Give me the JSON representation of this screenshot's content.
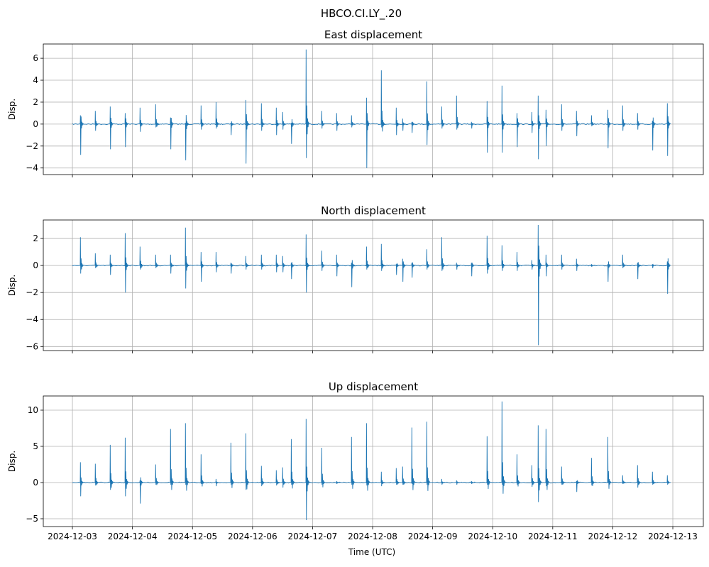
{
  "chart_data": {
    "type": "line",
    "suptitle": "HBCO.CI.LY_.20",
    "xlabel": "Time (UTC)",
    "x_unit": "days since 2024-12-03 00:00 UTC",
    "xlim": [
      -0.485,
      10.508
    ],
    "x_ticks": [
      0,
      1,
      2,
      3,
      4,
      5,
      6,
      7,
      8,
      9,
      10
    ],
    "x_tick_labels": [
      "2024-12-03",
      "2024-12-04",
      "2024-12-05",
      "2024-12-06",
      "2024-12-07",
      "2024-12-08",
      "2024-12-09",
      "2024-12-10",
      "2024-12-11",
      "2024-12-12",
      "2024-12-13"
    ],
    "grid": true,
    "line_color": "#1f77b4",
    "data_range": [
      0.0,
      9.95
    ],
    "spike_times": [
      0.13,
      0.378,
      0.626,
      0.875,
      1.123,
      1.383,
      1.631,
      1.879,
      2.139,
      2.388,
      2.636,
      2.884,
      3.144,
      3.392,
      3.499,
      3.641,
      3.889,
      4.149,
      4.397,
      4.645,
      4.894,
      5.142,
      5.39,
      5.496,
      5.65,
      5.898,
      6.147,
      6.395,
      6.643,
      6.903,
      7.151,
      7.4,
      7.648,
      7.754,
      7.884,
      8.144,
      8.392,
      8.641,
      8.913,
      9.161,
      9.409,
      9.657,
      9.905
    ],
    "panels": [
      {
        "title": "East displacement",
        "ylabel": "Disp.",
        "ylim": [
          -4.6,
          7.3
        ],
        "y_ticks": [
          -4,
          -2,
          0,
          2,
          4,
          6
        ],
        "y_tick_labels": [
          "−4",
          "−2",
          "0",
          "2",
          "4",
          "6"
        ],
        "spike_max": [
          0.8,
          1.2,
          1.6,
          1.0,
          1.5,
          1.8,
          0.6,
          0.1,
          1.7,
          2.0,
          0.1,
          2.2,
          1.9,
          1.5,
          1.1,
          0.1,
          6.8,
          1.2,
          1.0,
          0.8,
          2.4,
          4.9,
          1.5,
          0.5,
          0.2,
          3.9,
          1.6,
          2.6,
          0.2,
          2.1,
          3.5,
          1.0,
          1.1,
          2.6,
          1.3,
          1.8,
          1.2,
          0.8,
          1.3,
          1.7,
          1.0,
          0.3,
          1.9
        ],
        "spike_min": [
          -2.8,
          -0.6,
          -2.3,
          -2.1,
          -0.7,
          -0.3,
          -2.3,
          -3.3,
          -0.5,
          -0.4,
          -1.0,
          -3.6,
          -0.6,
          -1.0,
          -0.5,
          -1.8,
          -3.1,
          -0.4,
          -0.6,
          -0.3,
          -4.0,
          -0.3,
          -1.0,
          -0.6,
          -0.8,
          -1.9,
          -0.4,
          -0.5,
          -0.4,
          -2.6,
          -2.6,
          -2.1,
          -0.8,
          -3.2,
          -2.0,
          -0.6,
          -1.1,
          -0.2,
          -2.2,
          -0.6,
          -0.5,
          -2.4,
          -2.9
        ]
      },
      {
        "title": "North displacement",
        "ylabel": "Disp.",
        "ylim": [
          -6.3,
          3.37
        ],
        "y_ticks": [
          -6,
          -4,
          -2,
          0,
          2
        ],
        "y_tick_labels": [
          "−6",
          "−4",
          "−2",
          "0",
          "2"
        ],
        "spike_max": [
          2.1,
          0.9,
          0.8,
          2.4,
          1.4,
          0.8,
          0.8,
          2.8,
          1.0,
          1.0,
          0.2,
          0.7,
          0.8,
          0.8,
          0.7,
          0.2,
          2.3,
          1.1,
          0.8,
          0.2,
          1.4,
          1.6,
          0.1,
          0.5,
          0.2,
          1.2,
          2.1,
          0.2,
          0.2,
          2.2,
          1.5,
          1.0,
          0.4,
          3.0,
          0.8,
          0.8,
          0.5,
          0.1,
          0.1,
          0.8,
          0.2,
          0.1,
          0.3
        ],
        "spike_min": [
          -0.6,
          -0.2,
          -0.7,
          -2.0,
          -0.3,
          -0.2,
          -0.6,
          -1.7,
          -1.2,
          -0.5,
          -0.6,
          -0.3,
          -0.3,
          -0.5,
          -0.5,
          -1.0,
          -2.0,
          -0.4,
          -0.8,
          -1.6,
          -0.3,
          -0.4,
          -0.7,
          -1.2,
          -0.9,
          -0.3,
          -0.4,
          -0.3,
          -0.8,
          -0.6,
          -0.4,
          -0.4,
          -0.3,
          -5.9,
          -0.8,
          -0.3,
          -0.4,
          -0.1,
          -1.2,
          -0.2,
          -1.0,
          -0.2,
          -2.1
        ]
      },
      {
        "title": "Up displacement",
        "ylabel": "Disp.",
        "ylim": [
          -6.08,
          11.96
        ],
        "y_ticks": [
          -5,
          0,
          5,
          10
        ],
        "y_tick_labels": [
          "−5",
          "0",
          "5",
          "10"
        ],
        "spike_max": [
          2.8,
          2.6,
          5.2,
          6.2,
          0.3,
          2.5,
          7.4,
          8.2,
          3.9,
          0.5,
          5.5,
          6.8,
          2.3,
          1.7,
          2.1,
          6.0,
          8.8,
          4.8,
          0.2,
          6.3,
          8.2,
          1.5,
          2.0,
          2.2,
          7.6,
          8.4,
          0.5,
          0.3,
          0.2,
          6.4,
          11.2,
          3.9,
          2.4,
          7.9,
          7.4,
          2.2,
          0.2,
          3.4,
          6.3,
          1.0,
          2.4,
          1.5,
          1.0
        ],
        "spike_min": [
          -1.9,
          -0.4,
          -1.0,
          -1.9,
          -2.9,
          -0.3,
          -0.3,
          -0.3,
          -0.2,
          -0.5,
          -0.3,
          -1.0,
          -0.5,
          -0.4,
          -0.7,
          -0.3,
          -5.2,
          -0.3,
          -0.2,
          -0.3,
          -0.4,
          -0.5,
          -0.3,
          -0.3,
          -0.2,
          -0.3,
          -0.3,
          -0.3,
          -0.2,
          -0.3,
          -0.3,
          -0.3,
          -0.6,
          -2.7,
          -0.5,
          -0.3,
          -1.3,
          -0.4,
          0.0,
          -0.2,
          -0.7,
          -0.3,
          -0.3
        ]
      }
    ]
  }
}
